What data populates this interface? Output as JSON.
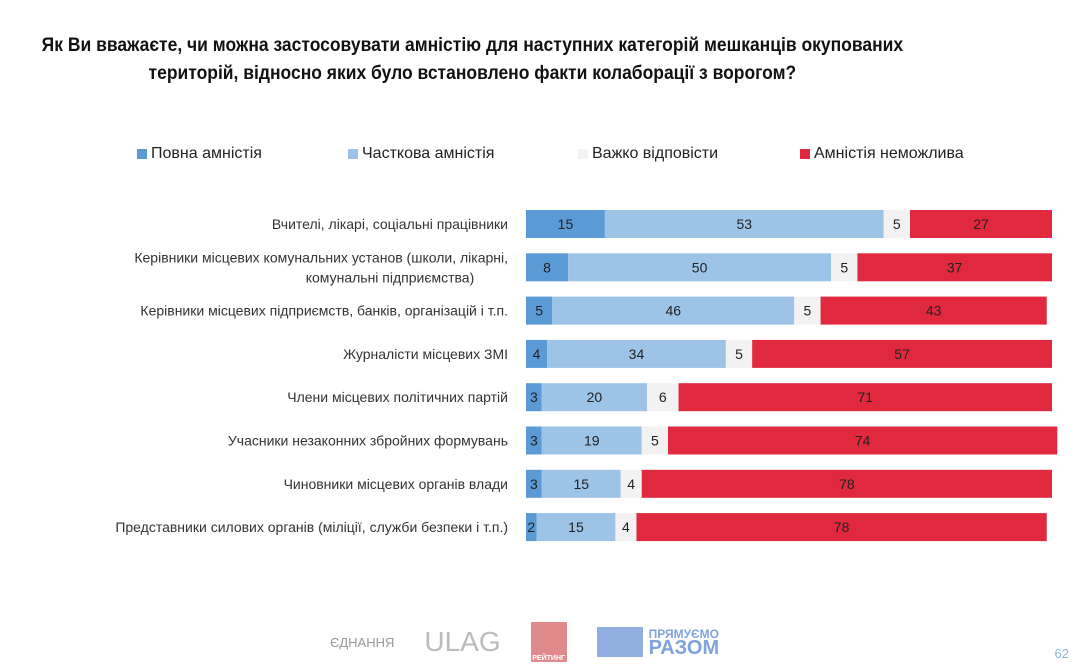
{
  "chart_data": {
    "type": "bar",
    "orientation": "horizontal-stacked-100",
    "title": "Як Ви вважаєте, чи можна застосовувати амністію для наступних категорій мешканців окупованих територій, відносно яких було встановлено факти колаборації з ворогом?",
    "legend_placement": "top",
    "categories": [
      "Вчителі, лікарі, соціальні працівники",
      "Керівники місцевих комунальних установ (школи, лікарні, комунальні підприємства)",
      "Керівники місцевих підприємств, банків, організацій і т.п.",
      "Журналісти місцевих ЗМІ",
      "Члени місцевих політичних партій",
      "Учасники незаконних збройних формувань",
      "Чиновники місцевих органів влади",
      "Представники силових органів (міліції, служби безпеки і т.п.)"
    ],
    "series": [
      {
        "name": "Повна амністія",
        "color": "#5b9bd5",
        "values": [
          15,
          8,
          5,
          4,
          3,
          3,
          3,
          2
        ]
      },
      {
        "name": "Часткова амністія",
        "color": "#9dc3e6",
        "values": [
          53,
          50,
          46,
          34,
          20,
          19,
          15,
          15
        ]
      },
      {
        "name": "Важко відповісти",
        "color": "#f2f2f2",
        "values": [
          5,
          5,
          5,
          5,
          6,
          5,
          4,
          4
        ]
      },
      {
        "name": "Амністія неможлива",
        "color": "#e0283f",
        "values": [
          27,
          37,
          43,
          57,
          71,
          74,
          78,
          78
        ]
      }
    ],
    "xlim": [
      0,
      100
    ],
    "grid": false
  },
  "footer": {
    "page_number": "62",
    "logos": [
      "ЄДНАННЯ",
      "ULAG",
      "РЕЙТИНГ",
      "ПРЯМУЄМО РАЗОМ"
    ]
  }
}
